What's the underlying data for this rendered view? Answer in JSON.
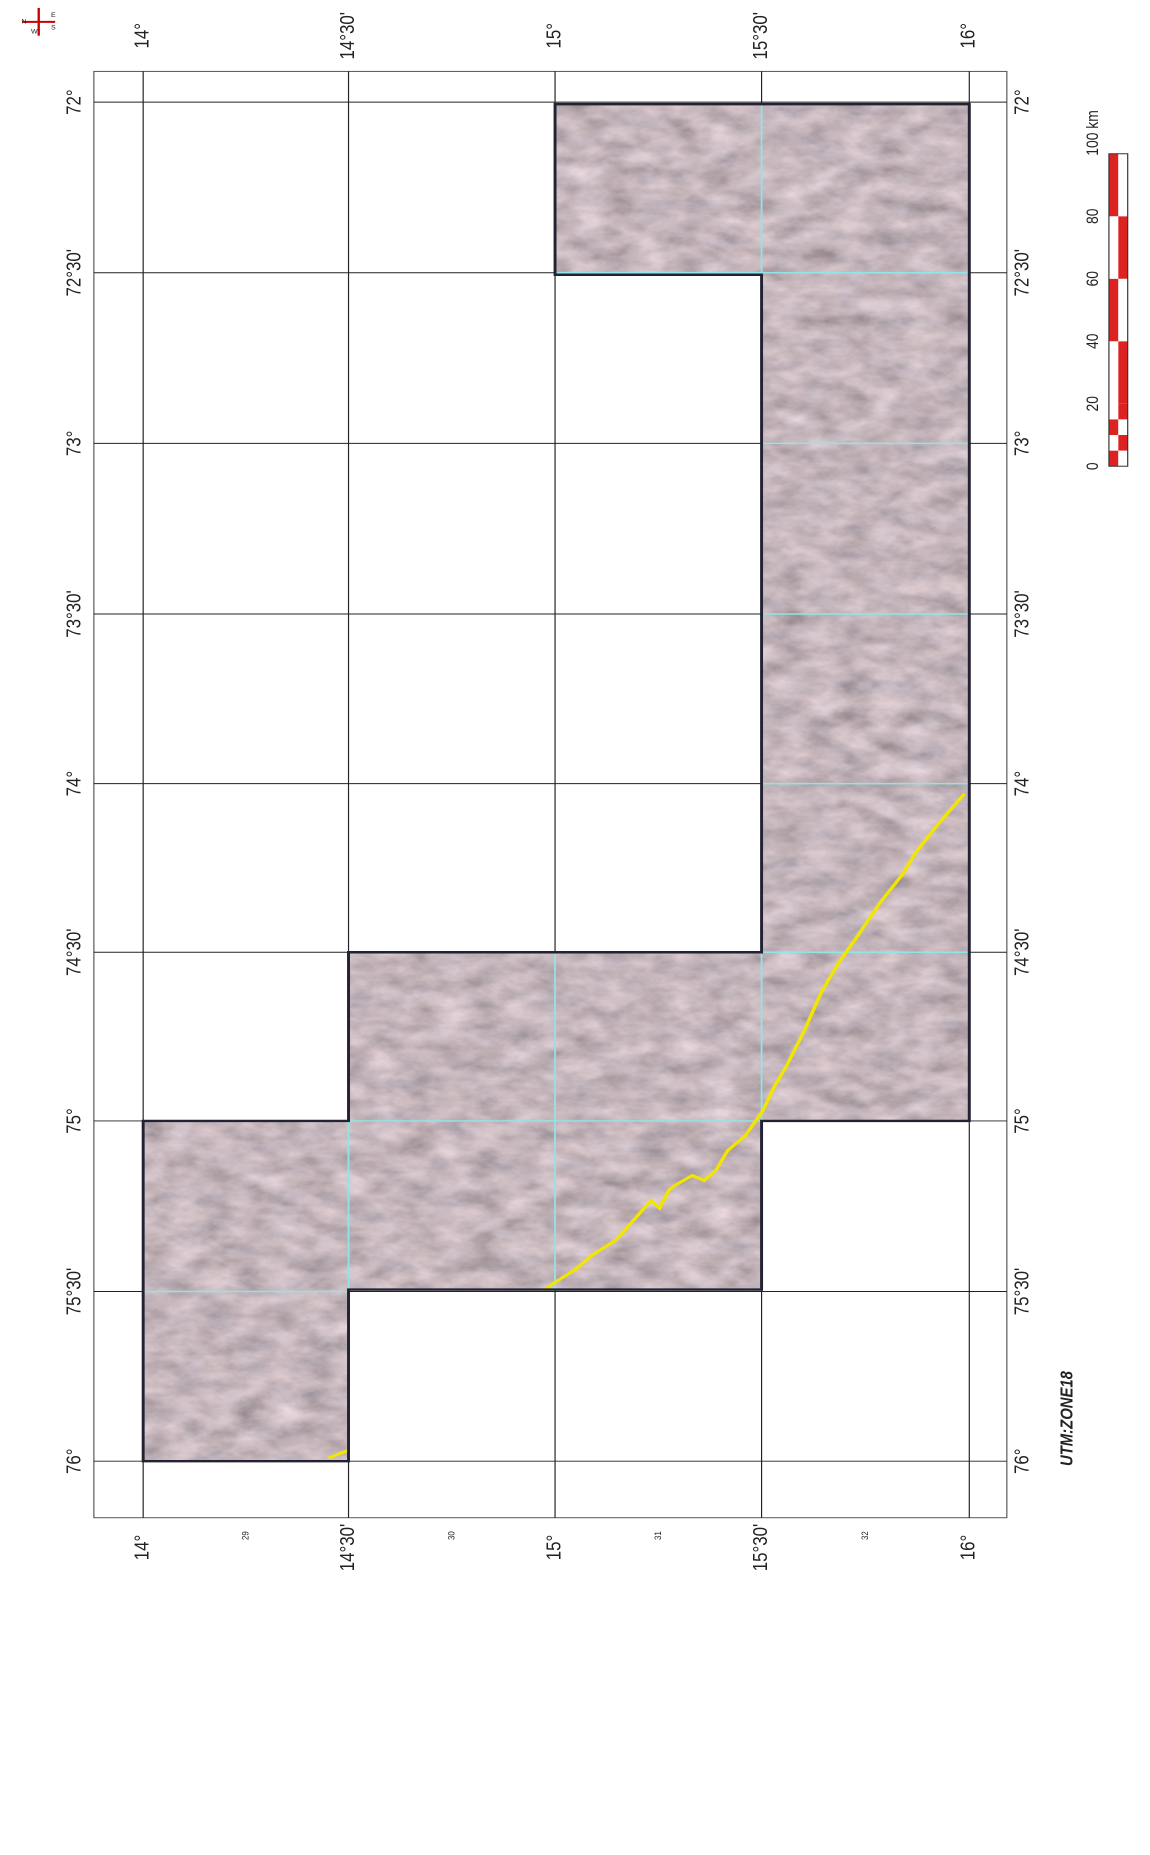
{
  "map": {
    "lat_labels": [
      "14°",
      "14°30'",
      "15°",
      "15°30'",
      "16°"
    ],
    "lon_labels": [
      "72°",
      "72°30'",
      "73°",
      "73°30'",
      "74°",
      "74°30'",
      "75°",
      "75°30'",
      "76°"
    ],
    "scale_labels": [
      "0",
      "20",
      "40",
      "60",
      "80",
      "100 km"
    ],
    "sheet_numbers": [
      "29",
      "30",
      "31",
      "32"
    ],
    "zone": "UTM:ZONE18",
    "compass": [
      "N",
      "E",
      "S",
      "W"
    ]
  }
}
